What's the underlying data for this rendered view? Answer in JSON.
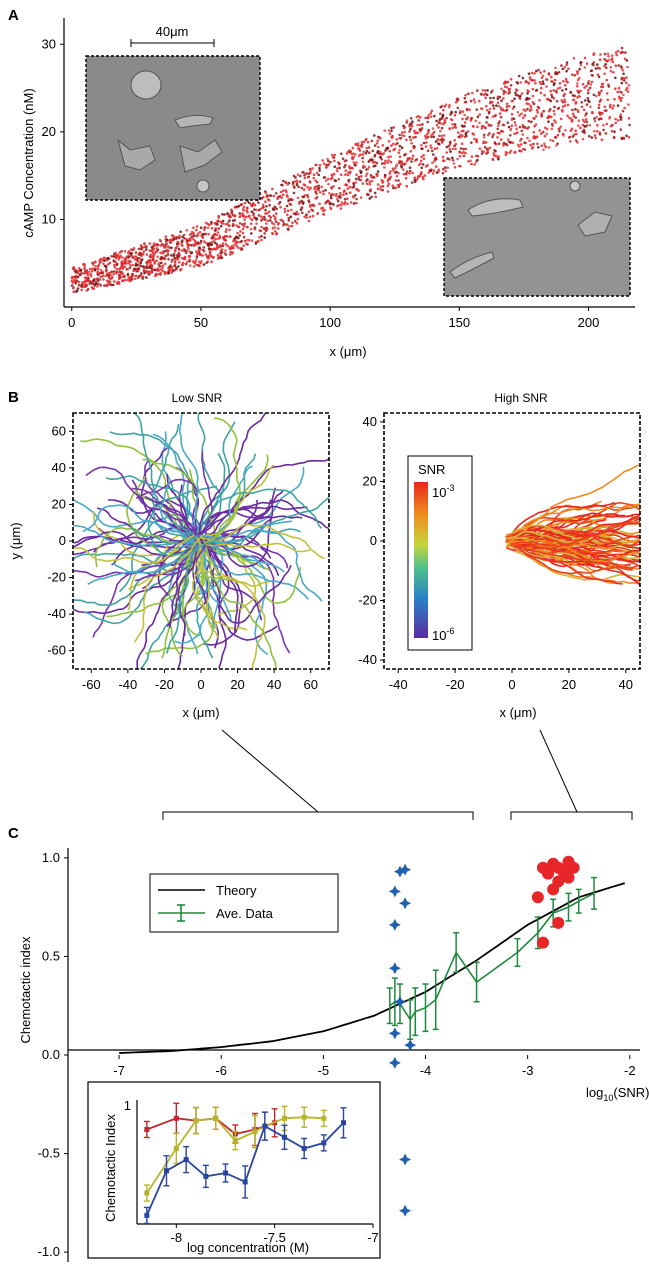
{
  "panels": {
    "a": {
      "letter": "A"
    },
    "b": {
      "letter": "B"
    },
    "c": {
      "letter": "C"
    }
  },
  "colors": {
    "red": "#e8262a",
    "dark_red": "#6b1010",
    "blue": "#1f5fb0",
    "green": "#1f8a3c",
    "purple": "#6a2aa0",
    "olive": "#b5b52a",
    "crimson": "#c0282e",
    "inset_blue": "#2845a0"
  },
  "chart_data": [
    {
      "id": "panel-a",
      "type": "scatter",
      "ylabel": "cAMP Concentration (nM)",
      "xlabel": "x (μm)",
      "xlim": [
        -3,
        218
      ],
      "ylim": [
        0,
        33
      ],
      "xticks": [
        "0",
        "50",
        "100",
        "150",
        "200"
      ],
      "yticks": [
        "10",
        "20",
        "30"
      ],
      "scale_bar_label": "40μm",
      "trend": {
        "x": [
          0,
          50,
          100,
          150,
          200,
          215
        ],
        "y": [
          3,
          7,
          14,
          20,
          24,
          24.5
        ]
      },
      "images": [
        "cell-micrograph-top-left",
        "cell-micrograph-bottom-right"
      ]
    },
    {
      "id": "panel-b-low",
      "type": "line",
      "title": "Low SNR",
      "xlabel": "x (μm)",
      "ylabel": "y (μm)",
      "xlim": [
        -70,
        70
      ],
      "ylim": [
        -70,
        70
      ],
      "xticks": [
        "-60",
        "-40",
        "-20",
        "0",
        "20",
        "40",
        "60"
      ],
      "yticks": [
        "60",
        "40",
        "20",
        "0",
        "-20",
        "-40",
        "-60"
      ]
    },
    {
      "id": "panel-b-high",
      "type": "line",
      "title": "High SNR",
      "xlabel": "x (μm)",
      "xlim": [
        -45,
        45
      ],
      "ylim": [
        -43,
        43
      ],
      "xticks": [
        "-40",
        "-20",
        "0",
        "20",
        "40"
      ],
      "yticks": [
        "40",
        "20",
        "0",
        "-20",
        "-40"
      ],
      "colorbar": {
        "title": "SNR",
        "max_base": "10",
        "max_exp": "-3",
        "min_base": "10",
        "min_exp": "-6"
      }
    },
    {
      "id": "panel-c",
      "type": "line",
      "ylabel": "Chemotactic index",
      "xlabel_prefix": "log",
      "xlabel_sub": "10",
      "xlabel_suffix": "(SNR)",
      "xlim": [
        -7.5,
        -1.9
      ],
      "ylim": [
        -1.05,
        1.05
      ],
      "xticks": [
        "-7",
        "-6",
        "-5",
        "-4",
        "-3",
        "-2"
      ],
      "yticks": [
        "1.0",
        "0.5",
        "0.0",
        "-0.5",
        "-1.0"
      ],
      "legend": [
        "Theory",
        "Ave. Data"
      ],
      "theory": {
        "x": [
          -7,
          -6.5,
          -6,
          -5.5,
          -5,
          -4.5,
          -4,
          -3.5,
          -3,
          -2.5,
          -2
        ],
        "y": [
          0.01,
          0.02,
          0.04,
          0.07,
          0.12,
          0.2,
          0.32,
          0.48,
          0.66,
          0.8,
          0.88
        ]
      },
      "ave_data": {
        "x": [
          -4.35,
          -4.3,
          -4.25,
          -4.15,
          -4.1,
          -4.0,
          -3.9,
          -3.7,
          -3.5,
          -3.1,
          -2.9,
          -2.75,
          -2.6,
          -2.5,
          -2.35
        ],
        "y": [
          0.25,
          0.27,
          0.26,
          0.18,
          0.22,
          0.24,
          0.28,
          0.52,
          0.37,
          0.52,
          0.62,
          0.72,
          0.75,
          0.78,
          0.82
        ],
        "err": [
          0.09,
          0.12,
          0.1,
          0.1,
          0.12,
          0.12,
          0.15,
          0.1,
          0.1,
          0.07,
          0.08,
          0.07,
          0.07,
          0.06,
          0.08
        ]
      },
      "low_snr_points": {
        "x": [
          -4.2,
          -4.25,
          -4.3,
          -4.2,
          -4.3,
          -4.3,
          -4.25,
          -4.3,
          -4.15,
          -4.3,
          -4.2,
          -4.2
        ],
        "y": [
          0.94,
          0.93,
          0.83,
          0.77,
          0.66,
          0.44,
          0.27,
          0.11,
          0.05,
          -0.04,
          -0.53,
          -0.79
        ]
      },
      "high_snr_points": {
        "x": [
          -2.85,
          -2.8,
          -2.75,
          -2.7,
          -2.65,
          -2.6,
          -2.55,
          -2.6,
          -2.7,
          -2.75,
          -2.9,
          -2.7,
          -2.85
        ],
        "y": [
          0.95,
          0.92,
          0.97,
          0.95,
          0.93,
          0.98,
          0.95,
          0.9,
          0.88,
          0.84,
          0.8,
          0.67,
          0.57
        ]
      },
      "brackets": {
        "low": [
          -7,
          -3.7
        ],
        "high": [
          -3.3,
          -2
        ]
      }
    },
    {
      "id": "panel-c-inset",
      "type": "line",
      "ylabel": "Chemotactic Index",
      "xlabel": "log concentration (M)",
      "xlim": [
        -8.2,
        -7.0
      ],
      "ylim": [
        0,
        1
      ],
      "xticks": [
        "-8",
        "-7.5",
        "-7"
      ],
      "ytick_top": "1",
      "series": [
        {
          "color": "#c0282e",
          "x": [
            -8.15,
            -8.0,
            -7.9,
            -7.8,
            -7.7,
            -7.6,
            -7.5
          ],
          "y": [
            0.82,
            0.92,
            0.9,
            0.92,
            0.78,
            0.82,
            0.88
          ]
        },
        {
          "color": "#b5b52a",
          "x": [
            -8.15,
            -8.0,
            -7.9,
            -7.8,
            -7.7,
            -7.6,
            -7.55,
            -7.45,
            -7.35,
            -7.25
          ],
          "y": [
            0.25,
            0.65,
            0.9,
            0.92,
            0.72,
            0.8,
            0.85,
            0.92,
            0.93,
            0.92
          ]
        },
        {
          "color": "#2845a0",
          "x": [
            -8.15,
            -8.05,
            -7.95,
            -7.85,
            -7.75,
            -7.65,
            -7.55,
            -7.45,
            -7.35,
            -7.25,
            -7.15
          ],
          "y": [
            0.05,
            0.45,
            0.55,
            0.4,
            0.43,
            0.35,
            0.85,
            0.75,
            0.65,
            0.7,
            0.88
          ]
        }
      ]
    }
  ]
}
